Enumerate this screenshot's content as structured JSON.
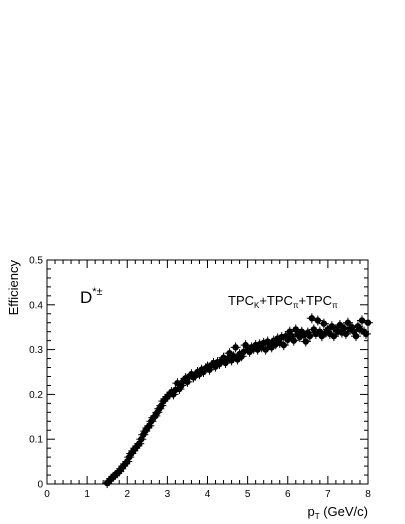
{
  "chart_data": {
    "type": "scatter",
    "xlabel": "p",
    "xlabel_sub": "T",
    "xlabel_unit": " (GeV/c)",
    "ylabel": "Efficiency",
    "xlim": [
      0,
      8
    ],
    "ylim": [
      0,
      0.5
    ],
    "x_ticks": [
      "0",
      "1",
      "2",
      "3",
      "4",
      "5",
      "6",
      "7",
      "8"
    ],
    "y_ticks": [
      "0",
      "0.1",
      "0.2",
      "0.3",
      "0.4",
      "0.5"
    ],
    "grid": false,
    "annotations": {
      "particle": {
        "base": "D",
        "sup": "*±"
      },
      "selection": [
        {
          "text": "TPC",
          "sub": "K"
        },
        {
          "text": "+TPC",
          "sub": "π"
        },
        {
          "text": "+TPC",
          "sub": "π"
        }
      ]
    },
    "series": [
      {
        "marker": "filled-circle",
        "color": "#000000",
        "points": [
          [
            1.5,
            0.002
          ],
          [
            1.55,
            0.007
          ],
          [
            1.6,
            0.012
          ],
          [
            1.65,
            0.016
          ],
          [
            1.7,
            0.02
          ],
          [
            1.75,
            0.024
          ],
          [
            1.8,
            0.028
          ],
          [
            1.85,
            0.034
          ],
          [
            1.9,
            0.04
          ],
          [
            1.95,
            0.045
          ],
          [
            2.0,
            0.05
          ],
          [
            2.05,
            0.06
          ],
          [
            2.1,
            0.068
          ],
          [
            2.15,
            0.074
          ],
          [
            2.2,
            0.08
          ],
          [
            2.25,
            0.085
          ],
          [
            2.3,
            0.09
          ],
          [
            2.35,
            0.1
          ],
          [
            2.4,
            0.11
          ],
          [
            2.45,
            0.118
          ],
          [
            2.5,
            0.125
          ],
          [
            2.55,
            0.13
          ],
          [
            2.6,
            0.14
          ],
          [
            2.65,
            0.148
          ],
          [
            2.7,
            0.152
          ],
          [
            2.75,
            0.16
          ],
          [
            2.8,
            0.168
          ],
          [
            2.85,
            0.175
          ],
          [
            2.9,
            0.185
          ],
          [
            2.95,
            0.19
          ],
          [
            3.0,
            0.195
          ],
          [
            3.05,
            0.2
          ],
          [
            3.1,
            0.205
          ],
          [
            3.15,
            0.2
          ],
          [
            3.2,
            0.21
          ],
          [
            3.25,
            0.225
          ],
          [
            3.3,
            0.212
          ],
          [
            3.35,
            0.22
          ],
          [
            3.4,
            0.23
          ],
          [
            3.45,
            0.236
          ],
          [
            3.5,
            0.228
          ],
          [
            3.55,
            0.24
          ],
          [
            3.6,
            0.245
          ],
          [
            3.65,
            0.238
          ],
          [
            3.7,
            0.242
          ],
          [
            3.75,
            0.25
          ],
          [
            3.8,
            0.245
          ],
          [
            3.85,
            0.255
          ],
          [
            3.9,
            0.25
          ],
          [
            3.95,
            0.258
          ],
          [
            4.0,
            0.262
          ],
          [
            4.05,
            0.255
          ],
          [
            4.1,
            0.265
          ],
          [
            4.15,
            0.27
          ],
          [
            4.2,
            0.262
          ],
          [
            4.25,
            0.272
          ],
          [
            4.3,
            0.268
          ],
          [
            4.35,
            0.275
          ],
          [
            4.4,
            0.282
          ],
          [
            4.45,
            0.27
          ],
          [
            4.5,
            0.28
          ],
          [
            4.55,
            0.292
          ],
          [
            4.6,
            0.276
          ],
          [
            4.65,
            0.285
          ],
          [
            4.7,
            0.305
          ],
          [
            4.75,
            0.278
          ],
          [
            4.8,
            0.29
          ],
          [
            4.85,
            0.285
          ],
          [
            4.9,
            0.295
          ],
          [
            4.95,
            0.31
          ],
          [
            5.0,
            0.3
          ],
          [
            5.05,
            0.295
          ],
          [
            5.1,
            0.305
          ],
          [
            5.15,
            0.302
          ],
          [
            5.2,
            0.31
          ],
          [
            5.25,
            0.3
          ],
          [
            5.3,
            0.312
          ],
          [
            5.35,
            0.305
          ],
          [
            5.4,
            0.315
          ],
          [
            5.45,
            0.3
          ],
          [
            5.5,
            0.318
          ],
          [
            5.55,
            0.31
          ],
          [
            5.6,
            0.305
          ],
          [
            5.65,
            0.32
          ],
          [
            5.7,
            0.312
          ],
          [
            5.75,
            0.325
          ],
          [
            5.8,
            0.315
          ],
          [
            5.85,
            0.328
          ],
          [
            5.9,
            0.31
          ],
          [
            5.95,
            0.33
          ],
          [
            6.0,
            0.322
          ],
          [
            6.05,
            0.34
          ],
          [
            6.1,
            0.33
          ],
          [
            6.15,
            0.32
          ],
          [
            6.2,
            0.345
          ],
          [
            6.25,
            0.335
          ],
          [
            6.3,
            0.328
          ],
          [
            6.35,
            0.34
          ],
          [
            6.4,
            0.332
          ],
          [
            6.45,
            0.318
          ],
          [
            6.5,
            0.338
          ],
          [
            6.55,
            0.33
          ],
          [
            6.6,
            0.37
          ],
          [
            6.65,
            0.345
          ],
          [
            6.7,
            0.335
          ],
          [
            6.75,
            0.365
          ],
          [
            6.8,
            0.34
          ],
          [
            6.85,
            0.33
          ],
          [
            6.9,
            0.358
          ],
          [
            6.95,
            0.338
          ],
          [
            7.0,
            0.345
          ],
          [
            7.05,
            0.335
          ],
          [
            7.1,
            0.352
          ],
          [
            7.15,
            0.33
          ],
          [
            7.2,
            0.345
          ],
          [
            7.25,
            0.34
          ],
          [
            7.3,
            0.355
          ],
          [
            7.35,
            0.338
          ],
          [
            7.4,
            0.348
          ],
          [
            7.45,
            0.335
          ],
          [
            7.5,
            0.36
          ],
          [
            7.55,
            0.345
          ],
          [
            7.6,
            0.35
          ],
          [
            7.65,
            0.34
          ],
          [
            7.7,
            0.33
          ],
          [
            7.75,
            0.352
          ],
          [
            7.8,
            0.345
          ],
          [
            7.85,
            0.365
          ],
          [
            7.9,
            0.34
          ],
          [
            7.95,
            0.335
          ],
          [
            8.0,
            0.36
          ]
        ]
      }
    ]
  }
}
